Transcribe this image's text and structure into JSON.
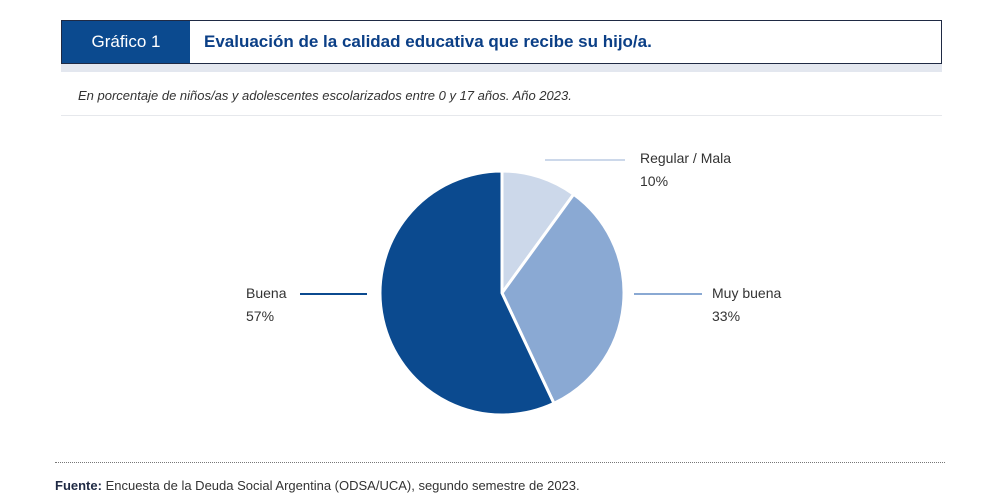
{
  "header": {
    "figure_label": "Gráfico 1",
    "title": "Evaluación de la calidad educativa que recibe su hijo/a."
  },
  "subtitle": "En porcentaje de niños/as y adolescentes escolarizados entre 0 y 17 años. Año 2023.",
  "chart_data": {
    "type": "pie",
    "title": "Evaluación de la calidad educativa que recibe su hijo/a.",
    "slices": [
      {
        "label": "Regular / Mala",
        "value": 10,
        "value_label": "10%",
        "color": "#ccd8ea"
      },
      {
        "label": "Muy buena",
        "value": 33,
        "value_label": "33%",
        "color": "#8aa9d3"
      },
      {
        "label": "Buena",
        "value": 57,
        "value_label": "57%",
        "color": "#0b4a8f"
      }
    ]
  },
  "footer": {
    "source_label": "Fuente:",
    "source_text": " Encuesta de la Deuda Social Argentina (ODSA/UCA), segundo semestre de 2023."
  }
}
